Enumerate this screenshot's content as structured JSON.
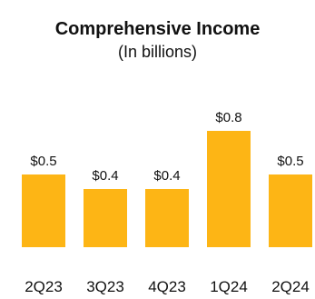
{
  "chart_data": {
    "type": "bar",
    "title": "Comprehensive Income",
    "subtitle": "(In billions)",
    "categories": [
      "2Q23",
      "3Q23",
      "4Q23",
      "1Q24",
      "2Q24"
    ],
    "values": [
      0.5,
      0.4,
      0.4,
      0.8,
      0.5
    ],
    "data_labels": [
      "$0.5",
      "$0.4",
      "$0.4",
      "$0.8",
      "$0.5"
    ],
    "bar_color": "#FDB515",
    "ylim": [
      0,
      1.0
    ],
    "grid": false,
    "legend": "none"
  }
}
